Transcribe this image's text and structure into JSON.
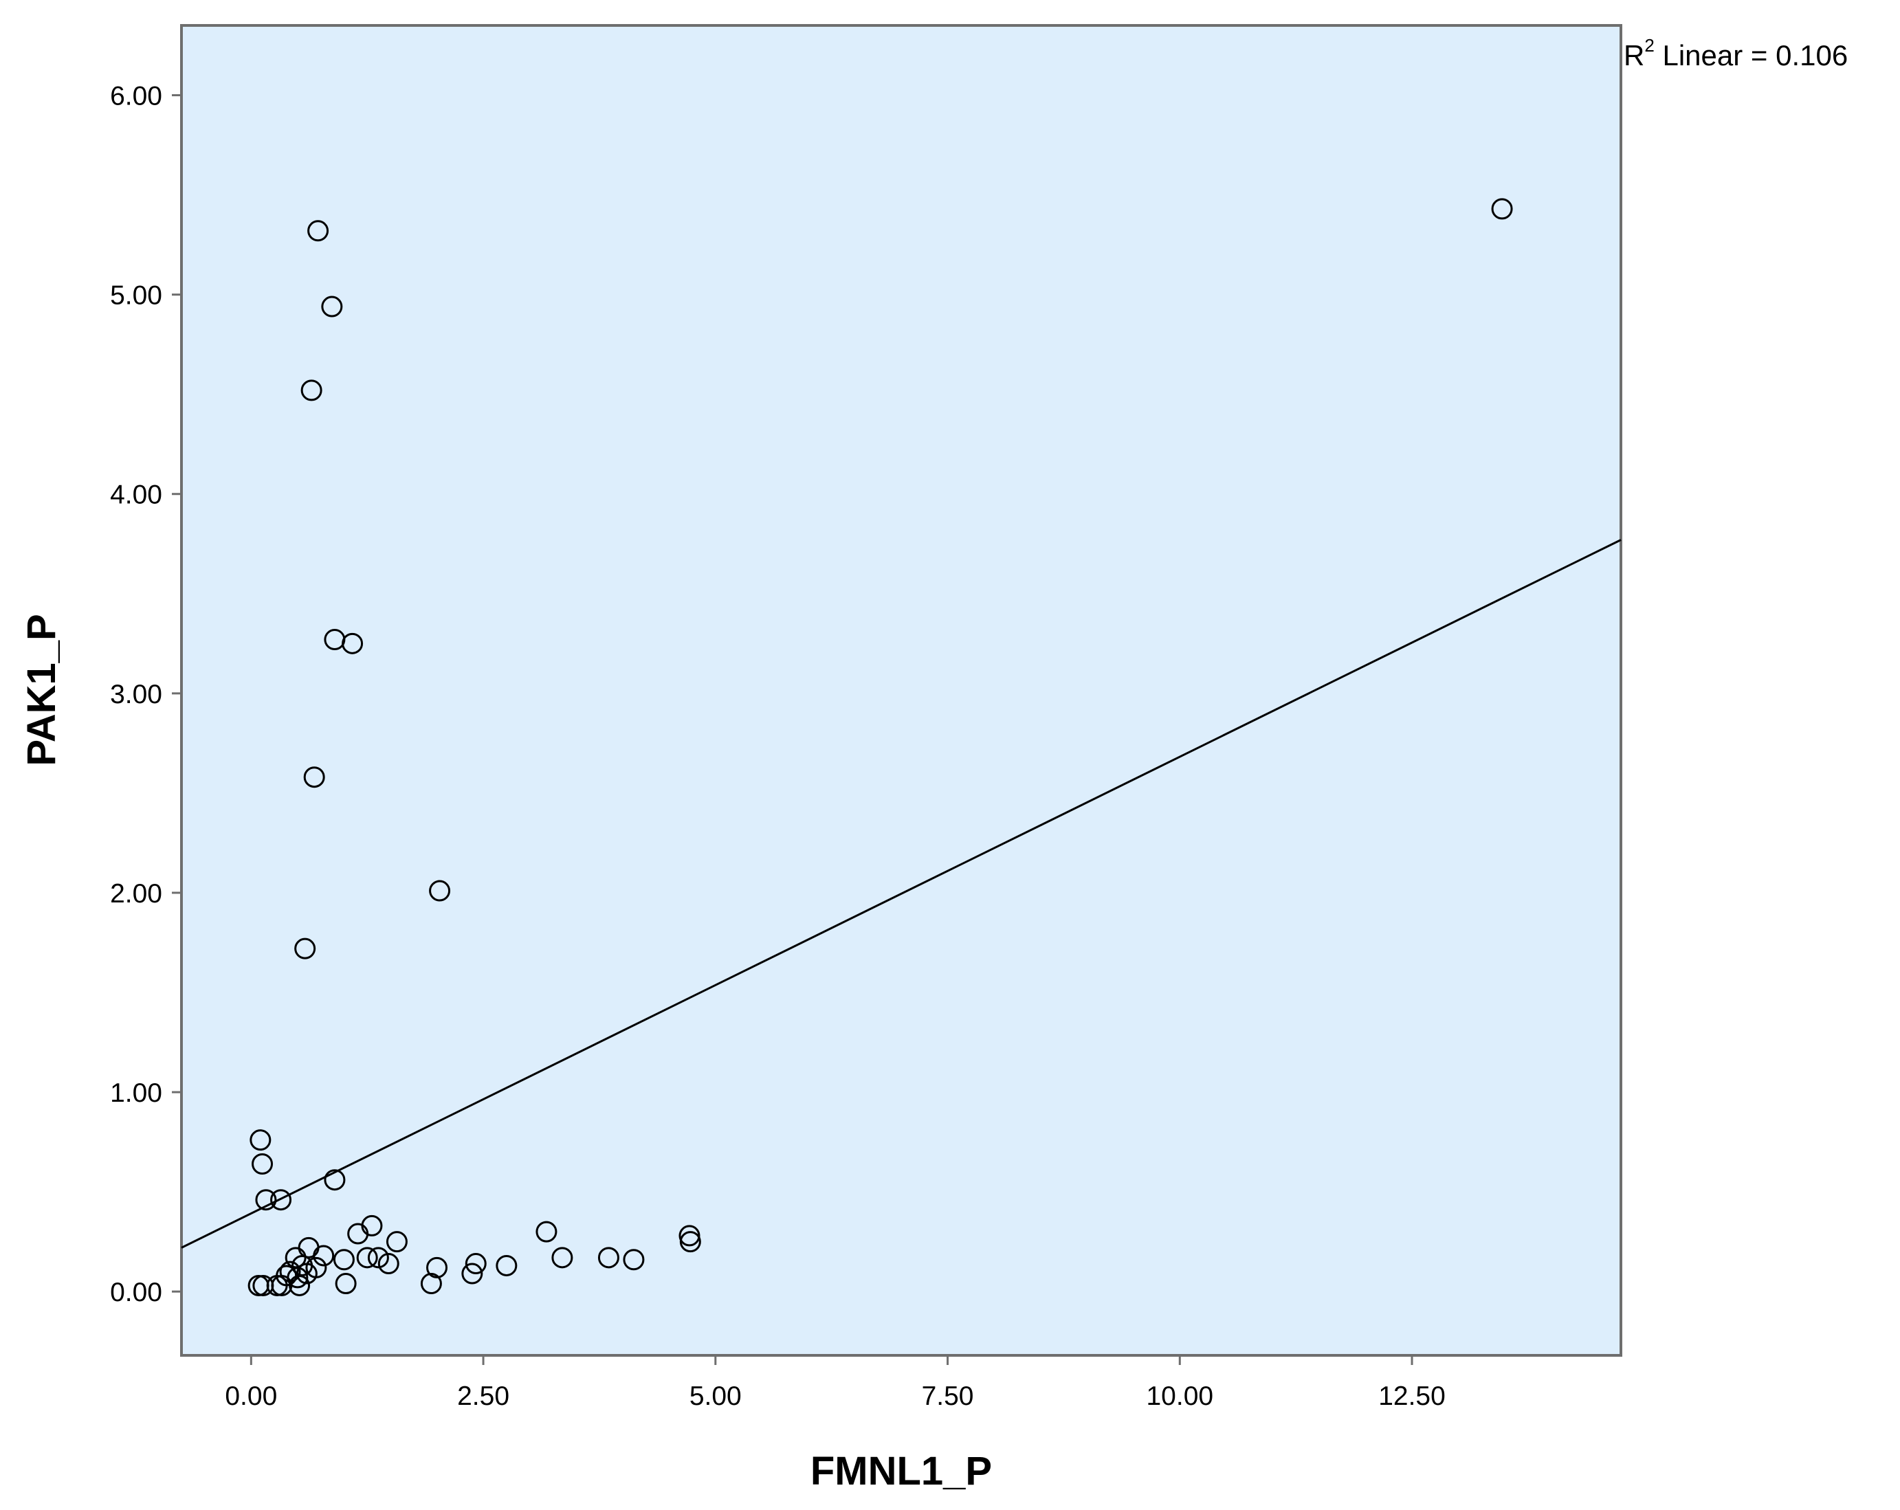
{
  "chart_data": {
    "type": "scatter",
    "title": "",
    "xlabel": "FMNL1_P",
    "ylabel": "PAK1_P",
    "xlim": [
      -0.75,
      14.75
    ],
    "ylim": [
      -0.32,
      6.35
    ],
    "x_ticks": [
      0.0,
      2.5,
      5.0,
      7.5,
      10.0,
      12.5
    ],
    "x_tick_labels": [
      "0.00",
      "2.50",
      "5.00",
      "7.50",
      "10.00",
      "12.50"
    ],
    "y_ticks": [
      0.0,
      1.0,
      2.0,
      3.0,
      4.0,
      5.0,
      6.0
    ],
    "y_tick_labels": [
      "0.00",
      "1.00",
      "2.00",
      "3.00",
      "4.00",
      "5.00",
      "6.00"
    ],
    "plot_background": "#ddeefc",
    "marker": "open-circle",
    "points": [
      {
        "x": 0.72,
        "y": 5.32
      },
      {
        "x": 0.87,
        "y": 4.94
      },
      {
        "x": 0.65,
        "y": 4.52
      },
      {
        "x": 0.9,
        "y": 3.27
      },
      {
        "x": 1.09,
        "y": 3.25
      },
      {
        "x": 0.68,
        "y": 2.58
      },
      {
        "x": 2.03,
        "y": 2.01
      },
      {
        "x": 0.58,
        "y": 1.72
      },
      {
        "x": 13.47,
        "y": 5.43
      },
      {
        "x": 0.1,
        "y": 0.76
      },
      {
        "x": 0.12,
        "y": 0.64
      },
      {
        "x": 0.9,
        "y": 0.56
      },
      {
        "x": 0.16,
        "y": 0.46
      },
      {
        "x": 0.32,
        "y": 0.46
      },
      {
        "x": 3.18,
        "y": 0.3
      },
      {
        "x": 1.3,
        "y": 0.33
      },
      {
        "x": 1.15,
        "y": 0.29
      },
      {
        "x": 4.72,
        "y": 0.28
      },
      {
        "x": 4.73,
        "y": 0.25
      },
      {
        "x": 1.57,
        "y": 0.25
      },
      {
        "x": 0.62,
        "y": 0.22
      },
      {
        "x": 0.78,
        "y": 0.18
      },
      {
        "x": 0.48,
        "y": 0.17
      },
      {
        "x": 1.0,
        "y": 0.16
      },
      {
        "x": 1.25,
        "y": 0.17
      },
      {
        "x": 1.37,
        "y": 0.17
      },
      {
        "x": 3.35,
        "y": 0.17
      },
      {
        "x": 3.85,
        "y": 0.17
      },
      {
        "x": 4.12,
        "y": 0.16
      },
      {
        "x": 1.48,
        "y": 0.14
      },
      {
        "x": 2.42,
        "y": 0.14
      },
      {
        "x": 0.55,
        "y": 0.13
      },
      {
        "x": 0.7,
        "y": 0.12
      },
      {
        "x": 2.75,
        "y": 0.13
      },
      {
        "x": 2.0,
        "y": 0.12
      },
      {
        "x": 0.42,
        "y": 0.1
      },
      {
        "x": 0.6,
        "y": 0.09
      },
      {
        "x": 2.38,
        "y": 0.09
      },
      {
        "x": 0.5,
        "y": 0.07
      },
      {
        "x": 1.02,
        "y": 0.04
      },
      {
        "x": 1.94,
        "y": 0.04
      },
      {
        "x": 0.08,
        "y": 0.03
      },
      {
        "x": 0.13,
        "y": 0.03
      },
      {
        "x": 0.28,
        "y": 0.03
      },
      {
        "x": 0.33,
        "y": 0.03
      },
      {
        "x": 0.52,
        "y": 0.03
      },
      {
        "x": 0.38,
        "y": 0.08
      }
    ],
    "fit_line": {
      "type": "linear",
      "x": [
        -0.75,
        14.75
      ],
      "y": [
        0.22,
        3.77
      ]
    },
    "annotation": {
      "base": "R",
      "sup": "2",
      "text": " Linear = 0.106"
    }
  }
}
